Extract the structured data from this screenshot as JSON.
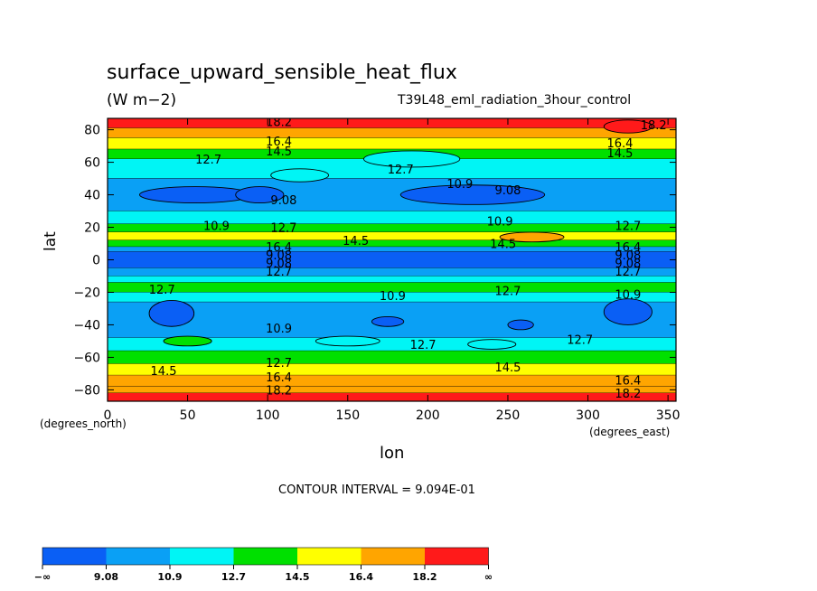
{
  "chart_data": {
    "type": "heatmap",
    "title": "surface_upward_sensible_heat_flux",
    "units": "(W m−2)",
    "run_label": "T39L48_eml_radiation_3hour_control",
    "xlabel": "lon",
    "ylabel": "lat",
    "x_unit_note": "(degrees_east)",
    "y_unit_note": "(degrees_north)",
    "xlim": [
      0,
      355
    ],
    "ylim": [
      -87,
      87
    ],
    "x_ticks": [
      "0",
      "50",
      "100",
      "150",
      "200",
      "250",
      "300",
      "350"
    ],
    "y_ticks": [
      "80",
      "60",
      "40",
      "20",
      "0",
      "−20",
      "−40",
      "−60",
      "−80"
    ],
    "contour_interval": "CONTOUR INTERVAL = 9.094E-01",
    "legend": {
      "labels": [
        "−∞",
        "9.08",
        "10.9",
        "12.7",
        "14.5",
        "16.4",
        "18.2",
        "∞"
      ],
      "colors": [
        "#0a5ff5",
        "#0aa0f5",
        "#00f5f5",
        "#00e000",
        "#ffff00",
        "#ffa500",
        "#ff1a1a"
      ]
    },
    "levels": [
      9.08,
      10.9,
      12.7,
      14.5,
      16.4,
      18.2
    ],
    "band_colors": [
      "#0a5ff5",
      "#0aa0f5",
      "#00f5f5",
      "#00e000",
      "#ffff00",
      "#ffa500",
      "#ff1a1a"
    ],
    "zonal_bands": [
      {
        "lat_from": 87,
        "lat_to": 81,
        "value": 19.0
      },
      {
        "lat_from": 81,
        "lat_to": 75,
        "value": 17.0
      },
      {
        "lat_from": 75,
        "lat_to": 68,
        "value": 15.3
      },
      {
        "lat_from": 68,
        "lat_to": 62,
        "value": 13.6
      },
      {
        "lat_from": 62,
        "lat_to": 50,
        "value": 11.8
      },
      {
        "lat_from": 50,
        "lat_to": 30,
        "value": 10.0
      },
      {
        "lat_from": 30,
        "lat_to": 22,
        "value": 11.8
      },
      {
        "lat_from": 22,
        "lat_to": 17,
        "value": 13.6
      },
      {
        "lat_from": 17,
        "lat_to": 12,
        "value": 15.3
      },
      {
        "lat_from": 12,
        "lat_to": 8,
        "value": 13.6
      },
      {
        "lat_from": 8,
        "lat_to": 5,
        "value": 10.0
      },
      {
        "lat_from": 5,
        "lat_to": -5,
        "value": 8.0
      },
      {
        "lat_from": -5,
        "lat_to": -10,
        "value": 10.0
      },
      {
        "lat_from": -10,
        "lat_to": -14,
        "value": 11.8
      },
      {
        "lat_from": -14,
        "lat_to": -20,
        "value": 13.6
      },
      {
        "lat_from": -20,
        "lat_to": -26,
        "value": 11.8
      },
      {
        "lat_from": -26,
        "lat_to": -48,
        "value": 10.0
      },
      {
        "lat_from": -48,
        "lat_to": -56,
        "value": 11.8
      },
      {
        "lat_from": -56,
        "lat_to": -64,
        "value": 13.6
      },
      {
        "lat_from": -64,
        "lat_to": -71,
        "value": 15.3
      },
      {
        "lat_from": -71,
        "lat_to": -78,
        "value": 17.0
      },
      {
        "lat_from": -78,
        "lat_to": -82,
        "value": 17.6
      },
      {
        "lat_from": -82,
        "lat_to": -87,
        "value": 19.0
      }
    ],
    "blobs": [
      {
        "lon": 55,
        "lat": 40,
        "rlon": 35,
        "rlat": 5,
        "value": 8.0
      },
      {
        "lon": 228,
        "lat": 40,
        "rlon": 45,
        "rlat": 6,
        "value": 8.0
      },
      {
        "lon": 95,
        "lat": 40,
        "rlon": 15,
        "rlat": 5,
        "value": 8.0
      },
      {
        "lon": 40,
        "lat": -33,
        "rlon": 14,
        "rlat": 8,
        "value": 8.0
      },
      {
        "lon": 325,
        "lat": -32,
        "rlon": 15,
        "rlat": 8,
        "value": 8.0
      },
      {
        "lon": 175,
        "lat": -38,
        "rlon": 10,
        "rlat": 3,
        "value": 8.0
      },
      {
        "lon": 258,
        "lat": -40,
        "rlon": 8,
        "rlat": 3,
        "value": 8.0
      },
      {
        "lon": 265,
        "lat": 14,
        "rlon": 20,
        "rlat": 3,
        "value": 17.0
      },
      {
        "lon": 325,
        "lat": 82,
        "rlon": 15,
        "rlat": 4,
        "value": 19.0
      },
      {
        "lon": 190,
        "lat": 62,
        "rlon": 30,
        "rlat": 5,
        "value": 11.8
      },
      {
        "lon": 120,
        "lat": 52,
        "rlon": 18,
        "rlat": 4,
        "value": 11.8
      },
      {
        "lon": 50,
        "lat": -50,
        "rlon": 15,
        "rlat": 3,
        "value": 13.6
      },
      {
        "lon": 150,
        "lat": -50,
        "rlon": 20,
        "rlat": 3,
        "value": 11.8
      },
      {
        "lon": 240,
        "lat": -52,
        "rlon": 15,
        "rlat": 3,
        "value": 11.8
      }
    ],
    "contour_labels": [
      {
        "lon": 107,
        "lat": 85,
        "text": "18.2"
      },
      {
        "lon": 341,
        "lat": 83,
        "text": "18.2"
      },
      {
        "lon": 107,
        "lat": 73,
        "text": "16.4"
      },
      {
        "lon": 320,
        "lat": 72,
        "text": "16.4"
      },
      {
        "lon": 107,
        "lat": 67,
        "text": "14.5"
      },
      {
        "lon": 320,
        "lat": 66,
        "text": "14.5"
      },
      {
        "lon": 63,
        "lat": 62,
        "text": "12.7"
      },
      {
        "lon": 183,
        "lat": 56,
        "text": "12.7"
      },
      {
        "lon": 220,
        "lat": 47,
        "text": "10.9"
      },
      {
        "lon": 250,
        "lat": 43,
        "text": "9.08"
      },
      {
        "lon": 110,
        "lat": 37,
        "text": "9.08"
      },
      {
        "lon": 68,
        "lat": 21,
        "text": "10.9"
      },
      {
        "lon": 110,
        "lat": 20,
        "text": "12.7"
      },
      {
        "lon": 245,
        "lat": 24,
        "text": "10.9"
      },
      {
        "lon": 325,
        "lat": 21,
        "text": "12.7"
      },
      {
        "lon": 155,
        "lat": 12,
        "text": "14.5"
      },
      {
        "lon": 247,
        "lat": 10,
        "text": "14.5"
      },
      {
        "lon": 107,
        "lat": 8,
        "text": "16.4"
      },
      {
        "lon": 325,
        "lat": 8,
        "text": "16.4"
      },
      {
        "lon": 107,
        "lat": 3,
        "text": "9.08"
      },
      {
        "lon": 325,
        "lat": 3,
        "text": "9.08"
      },
      {
        "lon": 107,
        "lat": -2,
        "text": "9.08"
      },
      {
        "lon": 325,
        "lat": -2,
        "text": "9.08"
      },
      {
        "lon": 107,
        "lat": -7,
        "text": "12.7"
      },
      {
        "lon": 325,
        "lat": -7,
        "text": "12.7"
      },
      {
        "lon": 34,
        "lat": -18,
        "text": "12.7"
      },
      {
        "lon": 178,
        "lat": -22,
        "text": "10.9"
      },
      {
        "lon": 250,
        "lat": -19,
        "text": "12.7"
      },
      {
        "lon": 325,
        "lat": -21,
        "text": "10.9"
      },
      {
        "lon": 107,
        "lat": -42,
        "text": "10.9"
      },
      {
        "lon": 197,
        "lat": -52,
        "text": "12.7"
      },
      {
        "lon": 295,
        "lat": -49,
        "text": "12.7"
      },
      {
        "lon": 35,
        "lat": -68,
        "text": "14.5"
      },
      {
        "lon": 250,
        "lat": -66,
        "text": "14.5"
      },
      {
        "lon": 107,
        "lat": -72,
        "text": "16.4"
      },
      {
        "lon": 325,
        "lat": -74,
        "text": "16.4"
      },
      {
        "lon": 107,
        "lat": -80,
        "text": "18.2"
      },
      {
        "lon": 325,
        "lat": -82,
        "text": "18.2"
      },
      {
        "lon": 107,
        "lat": -63,
        "text": "12.7"
      }
    ]
  }
}
